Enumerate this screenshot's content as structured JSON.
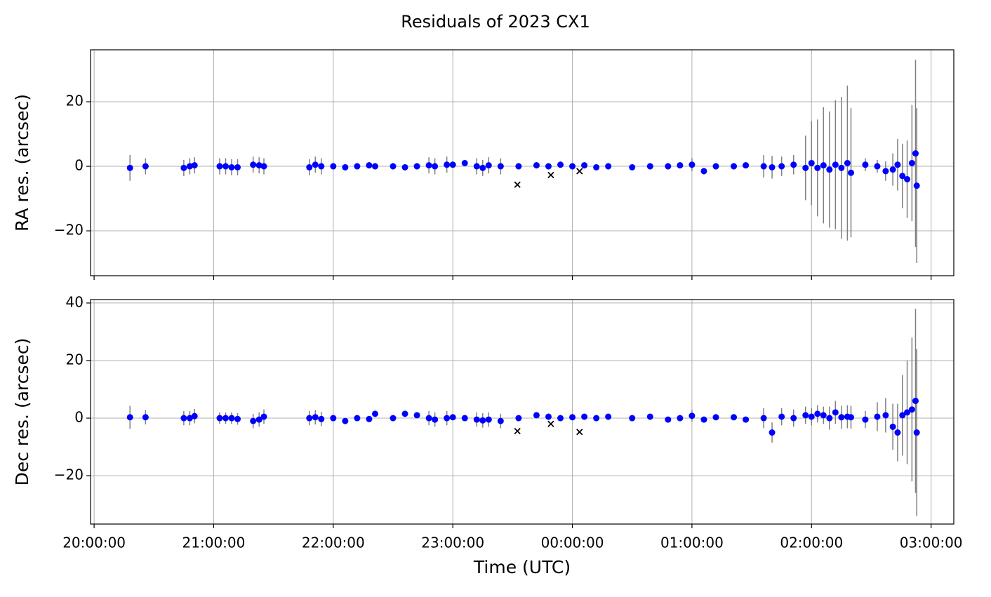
{
  "chart_data": [
    {
      "type": "errorbar",
      "title": "Residuals of 2023 CX1",
      "ylabel": "RA res. (arcsec)",
      "xlim": [
        19.97,
        27.19
      ],
      "xticks": [
        20,
        21,
        22,
        23,
        24,
        25,
        26,
        27
      ],
      "ylim": [
        -33.9,
        36.1
      ],
      "yticks": [
        -20,
        0,
        20
      ],
      "grid": true,
      "series": [
        {
          "color": "#0000ff",
          "error_color": "#808080",
          "marker": "circle",
          "x": [
            20.3,
            20.43,
            20.75,
            20.8,
            20.84,
            21.05,
            21.1,
            21.15,
            21.2,
            21.33,
            21.38,
            21.42,
            21.8,
            21.85,
            21.9,
            22.0,
            22.1,
            22.2,
            22.3,
            22.35,
            22.5,
            22.6,
            22.7,
            22.8,
            22.85,
            22.95,
            23.0,
            23.1,
            23.2,
            23.25,
            23.3,
            23.4,
            23.55,
            23.7,
            23.8,
            23.9,
            24.0,
            24.1,
            24.2,
            24.3,
            24.5,
            24.65,
            24.8,
            24.9,
            25.0,
            25.1,
            25.2,
            25.35,
            25.45,
            25.6,
            25.67,
            25.75,
            25.85,
            25.95,
            26.0,
            26.05,
            26.1,
            26.15,
            26.2,
            26.25,
            26.3,
            26.33,
            26.45,
            26.55,
            26.62,
            26.68,
            26.72,
            26.76,
            26.8,
            26.84,
            26.87,
            26.88
          ],
          "values": [
            -0.5,
            0,
            -0.5,
            0,
            0.3,
            0,
            0,
            -0.3,
            -0.3,
            0.5,
            0.3,
            0,
            -0.3,
            0.5,
            0,
            0,
            -0.3,
            0,
            0.3,
            0,
            0,
            -0.3,
            0,
            0.3,
            0,
            0.5,
            0.5,
            1,
            0,
            -0.5,
            0.3,
            0,
            0,
            0.3,
            0,
            0.5,
            0,
            0.3,
            -0.3,
            0,
            -0.3,
            0,
            0,
            0.3,
            0.5,
            -1.5,
            0,
            0,
            0.3,
            0,
            -0.3,
            0,
            0.5,
            -0.5,
            1,
            -0.5,
            0.3,
            -1,
            0.5,
            -0.5,
            1,
            -2,
            0.5,
            0,
            -1.5,
            -1,
            0.5,
            -3,
            -4,
            1,
            4,
            -6
          ],
          "errors": [
            4,
            2.5,
            2.5,
            2.5,
            2.5,
            2.5,
            2.5,
            2.5,
            2.5,
            2.5,
            2.5,
            2.5,
            2.5,
            2.5,
            2.5,
            1,
            1,
            1,
            1,
            1,
            1,
            1,
            1,
            2.5,
            2.5,
            2.5,
            1,
            1,
            2.5,
            2.5,
            2.5,
            2.5,
            1,
            1,
            1,
            1,
            1,
            1,
            1,
            1,
            1,
            1,
            1,
            1,
            2,
            1,
            1,
            1,
            1,
            3.5,
            3.5,
            3,
            3,
            10,
            13,
            15,
            18,
            18,
            20,
            22,
            24,
            20,
            2,
            2,
            3,
            5,
            8,
            10,
            12,
            18,
            29,
            24
          ]
        },
        {
          "color": "#000000",
          "marker": "x",
          "x": [
            23.54,
            23.82,
            24.06
          ],
          "values": [
            -5.7,
            -2.7,
            -1.5
          ]
        }
      ]
    },
    {
      "type": "errorbar",
      "ylabel": "Dec res. (arcsec)",
      "xlabel": "Time (UTC)",
      "xlim": [
        19.97,
        27.19
      ],
      "xticks": [
        {
          "value": 20,
          "label": "20:00:00"
        },
        {
          "value": 21,
          "label": "21:00:00"
        },
        {
          "value": 22,
          "label": "22:00:00"
        },
        {
          "value": 23,
          "label": "23:00:00"
        },
        {
          "value": 24,
          "label": "00:00:00"
        },
        {
          "value": 25,
          "label": "01:00:00"
        },
        {
          "value": 26,
          "label": "02:00:00"
        },
        {
          "value": 27,
          "label": "03:00:00"
        }
      ],
      "ylim": [
        -36.8,
        41.2
      ],
      "yticks": [
        -20,
        0,
        20,
        40
      ],
      "grid": true,
      "series": [
        {
          "color": "#0000ff",
          "error_color": "#808080",
          "marker": "circle",
          "x": [
            20.3,
            20.43,
            20.75,
            20.8,
            20.84,
            21.05,
            21.1,
            21.15,
            21.2,
            21.33,
            21.38,
            21.42,
            21.8,
            21.85,
            21.9,
            22.0,
            22.1,
            22.2,
            22.3,
            22.35,
            22.5,
            22.6,
            22.7,
            22.8,
            22.85,
            22.95,
            23.0,
            23.1,
            23.2,
            23.25,
            23.3,
            23.4,
            23.55,
            23.7,
            23.8,
            23.9,
            24.0,
            24.1,
            24.2,
            24.3,
            24.5,
            24.65,
            24.8,
            24.9,
            25.0,
            25.1,
            25.2,
            25.35,
            25.45,
            25.6,
            25.67,
            25.75,
            25.85,
            25.95,
            26.0,
            26.05,
            26.1,
            26.15,
            26.2,
            26.25,
            26.3,
            26.33,
            26.45,
            26.55,
            26.62,
            26.68,
            26.72,
            26.76,
            26.8,
            26.84,
            26.87,
            26.88
          ],
          "values": [
            0.3,
            0.3,
            0,
            0,
            0.7,
            0,
            0,
            0,
            -0.3,
            -1,
            -0.5,
            0.5,
            0,
            0.3,
            -0.3,
            0,
            -1,
            0,
            -0.3,
            1.5,
            0,
            1.5,
            1,
            0,
            -0.5,
            0,
            0.3,
            0,
            -0.5,
            -0.8,
            -0.5,
            -1,
            0,
            1,
            0.5,
            0,
            0.3,
            0.5,
            0,
            0.5,
            0,
            0.5,
            -0.5,
            0,
            0.8,
            -0.5,
            0.3,
            0.3,
            -0.5,
            0,
            -5,
            0.5,
            0,
            1,
            0.5,
            1.5,
            1,
            0,
            2,
            0.3,
            0.5,
            0.3,
            -0.5,
            0.5,
            1,
            -3,
            -5,
            1,
            2,
            3,
            6,
            -5
          ],
          "errors": [
            4,
            2.5,
            2.5,
            2.5,
            2.5,
            2,
            2,
            2,
            2,
            2.5,
            2.5,
            2.5,
            2.5,
            2.5,
            2.5,
            1,
            1,
            1,
            1,
            1,
            1,
            1,
            1,
            2.5,
            2.5,
            2.5,
            1,
            1,
            2.5,
            2.5,
            2.5,
            2.5,
            1,
            1,
            1,
            1,
            1,
            1,
            1,
            1,
            1,
            1,
            1,
            1,
            2,
            1,
            1,
            1,
            1,
            3.5,
            3.5,
            3,
            3,
            3,
            3,
            3,
            3,
            4,
            4,
            4,
            4,
            4,
            3,
            5,
            6,
            8,
            10,
            14,
            18,
            25,
            32,
            29
          ]
        },
        {
          "color": "#000000",
          "marker": "x",
          "x": [
            23.54,
            23.82,
            24.06
          ],
          "values": [
            -4.5,
            -2,
            -4.8
          ]
        }
      ]
    }
  ]
}
